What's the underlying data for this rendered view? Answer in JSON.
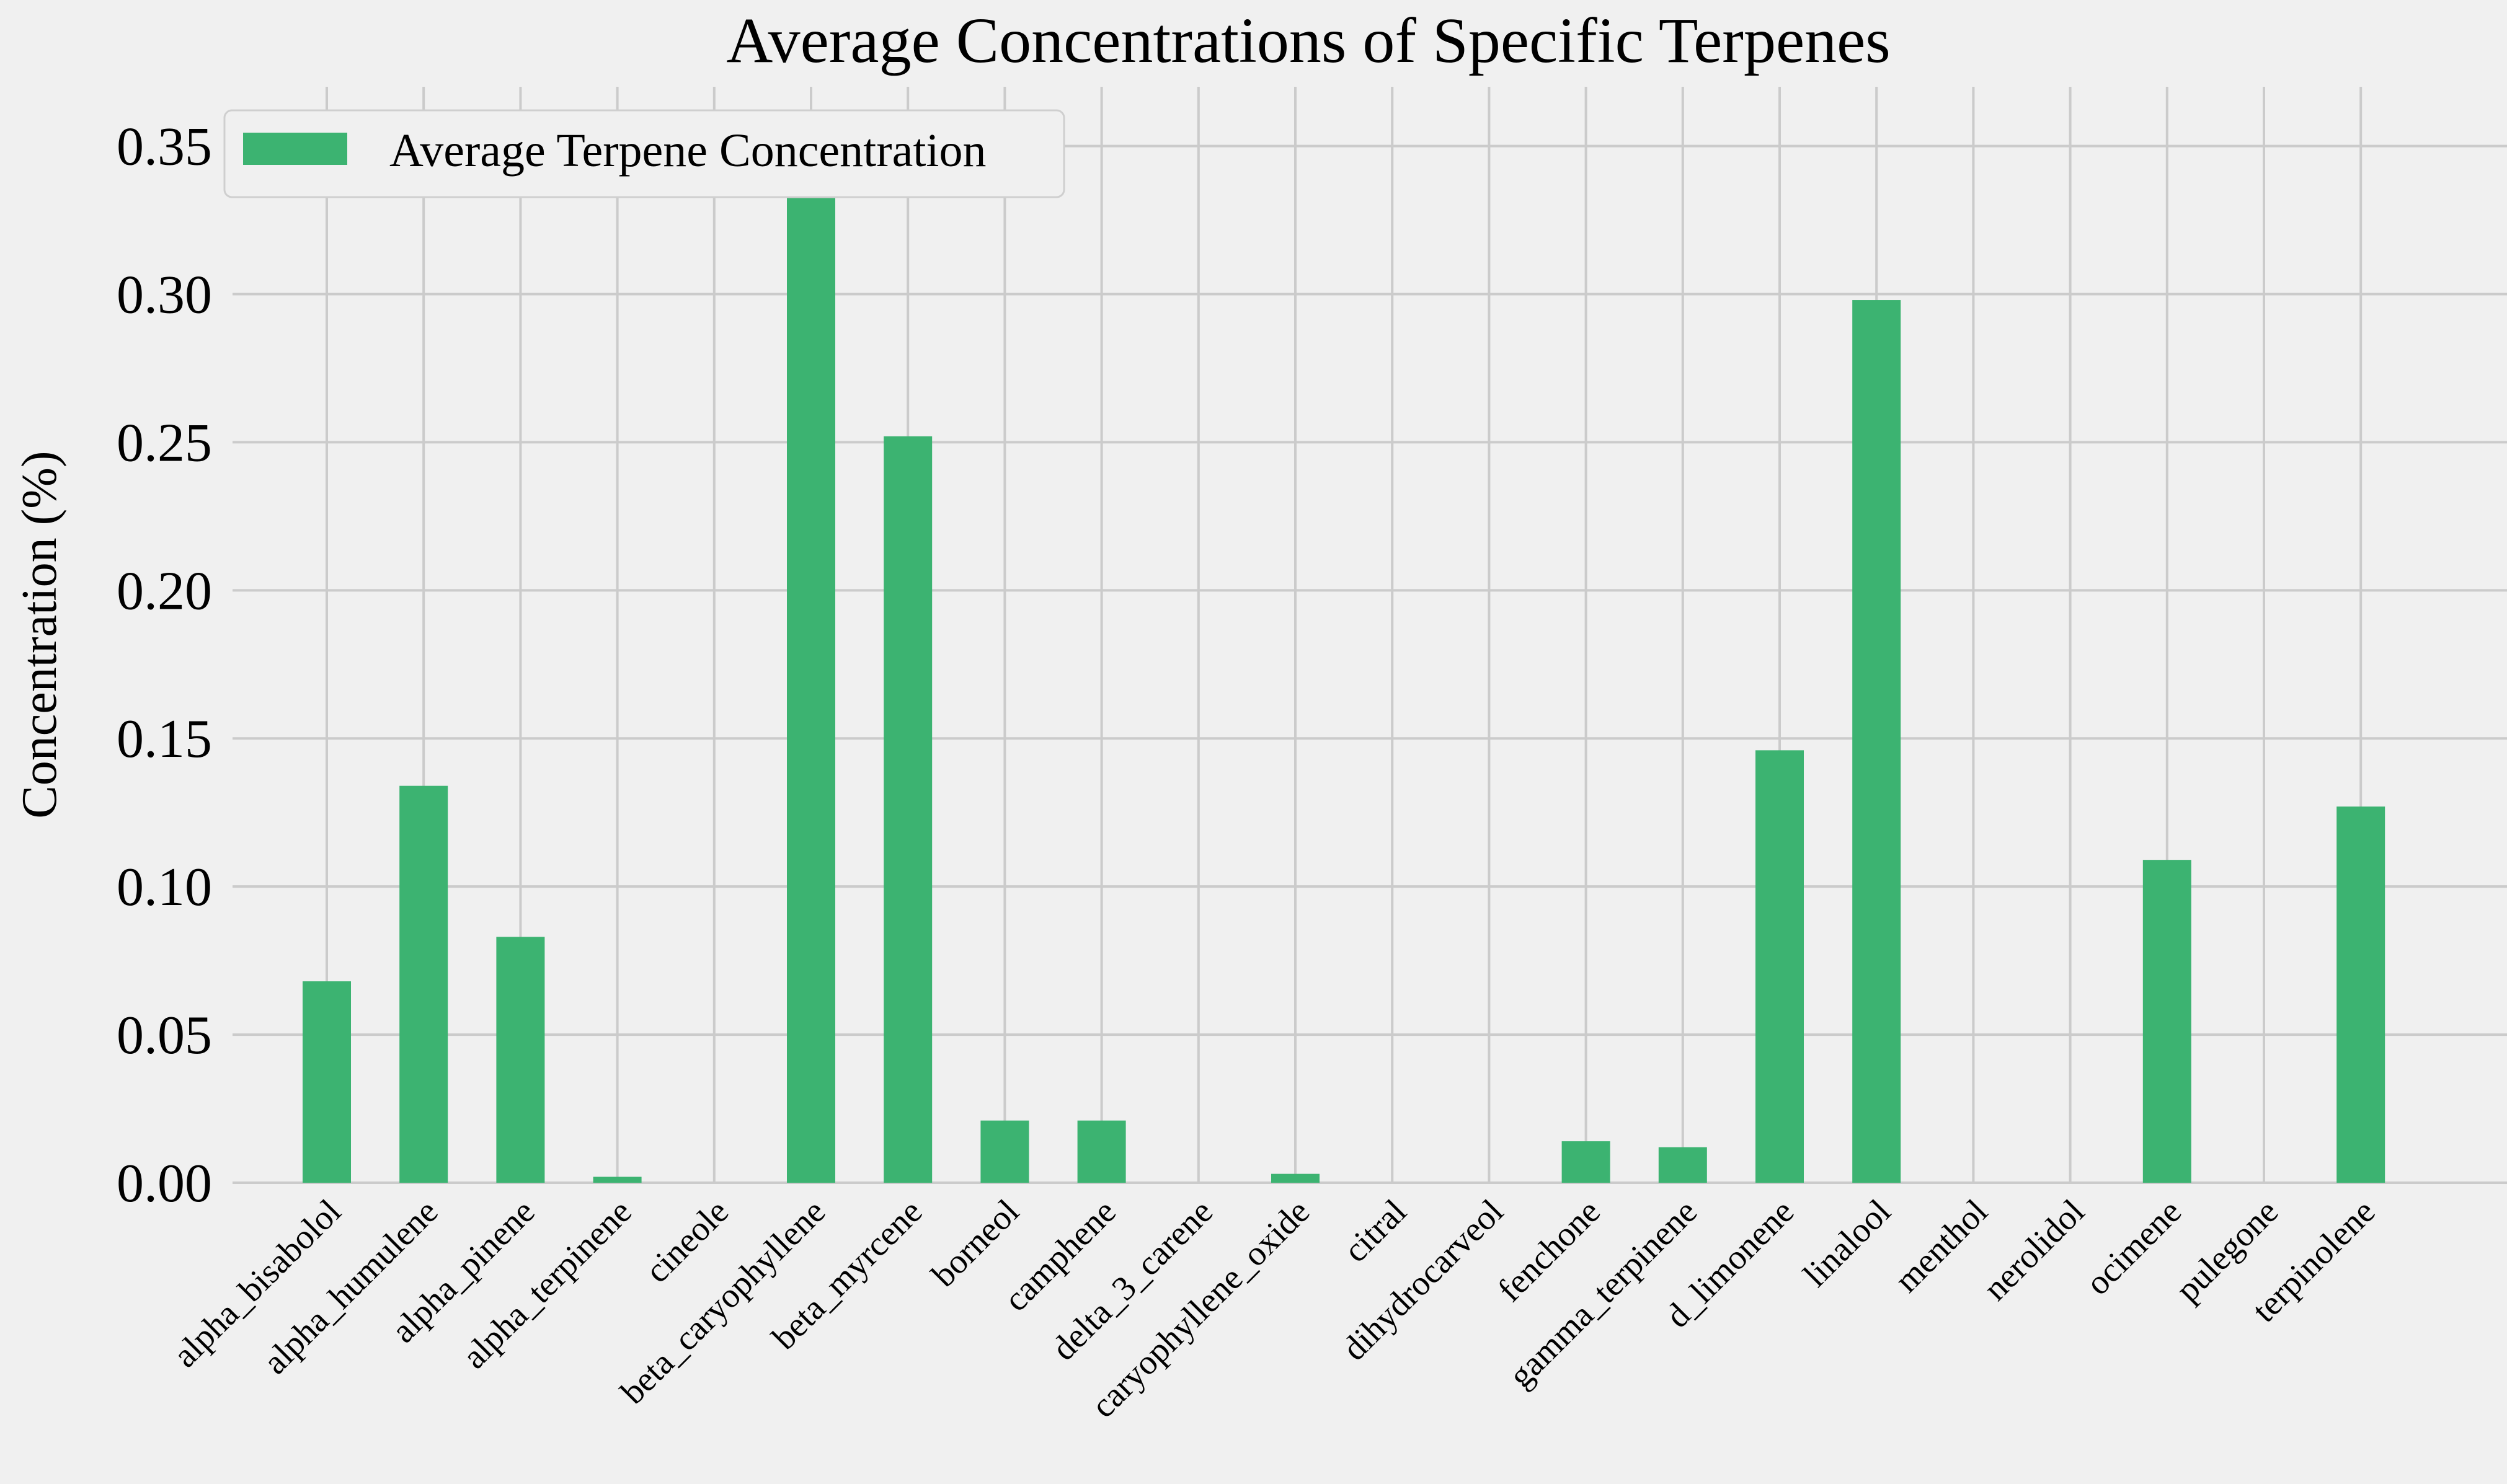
{
  "chart_data": {
    "type": "bar",
    "title": "Average Concentrations of Specific Terpenes",
    "xlabel": "",
    "ylabel": "Concentration (%)",
    "ylim": [
      0,
      0.37
    ],
    "yticks": [
      0.0,
      0.05,
      0.1,
      0.15,
      0.2,
      0.25,
      0.3,
      0.35
    ],
    "ytick_labels": [
      "0.00",
      "0.05",
      "0.10",
      "0.15",
      "0.20",
      "0.25",
      "0.30",
      "0.35"
    ],
    "grid": true,
    "legend_position": "top-left",
    "categories": [
      "alpha_bisabolol",
      "alpha_humulene",
      "alpha_pinene",
      "alpha_terpinene",
      "cineole",
      "beta_caryophyllene",
      "beta_myrcene",
      "borneol",
      "camphene",
      "delta_3_carene",
      "caryophyllene_oxide",
      "citral",
      "dihydrocarveol",
      "fenchone",
      "gamma_terpinene",
      "d_limonene",
      "linalool",
      "menthol",
      "nerolidol",
      "ocimene",
      "pulegone",
      "terpinolene"
    ],
    "series": [
      {
        "name": "Average Terpene Concentration",
        "color": "#3cb371",
        "values": [
          0.068,
          0.134,
          0.083,
          0.002,
          0.0,
          0.36,
          0.252,
          0.021,
          0.021,
          0.0,
          0.003,
          0.0,
          0.0,
          0.014,
          0.012,
          0.146,
          0.298,
          0.0,
          0.0,
          0.109,
          0.0,
          0.127
        ]
      }
    ]
  }
}
